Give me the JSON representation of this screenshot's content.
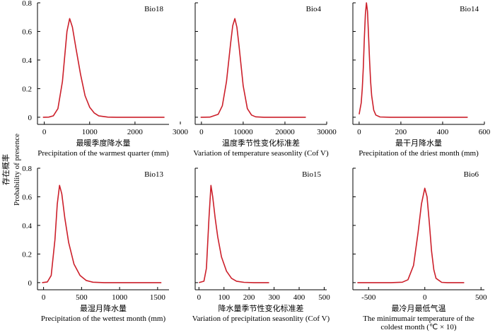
{
  "figure": {
    "ylabel_cn": "存在概率",
    "ylabel_en": "Probability of presence"
  },
  "style": {
    "line_color": "#cc1f2a",
    "axis_color": "#000000"
  },
  "chart_data": [
    {
      "type": "line",
      "panel_label": "Bio18",
      "xlabel_cn": "最暖季度降水量",
      "xlabel_en": [
        "Precipitation of the warmest quarter (mm)"
      ],
      "xlim": [
        -150,
        2750
      ],
      "ylim": [
        -0.05,
        0.8
      ],
      "xticks": [
        0,
        1000,
        2000,
        3000
      ],
      "yticks": [
        0,
        0.2,
        0.4,
        0.6,
        0.8
      ],
      "show_y_ticklabels": true,
      "x": [
        -30,
        100,
        200,
        300,
        400,
        500,
        560,
        620,
        700,
        800,
        900,
        1000,
        1100,
        1200,
        1400,
        1600,
        2000,
        2400,
        2650
      ],
      "y": [
        0,
        0.001,
        0.01,
        0.06,
        0.25,
        0.6,
        0.69,
        0.63,
        0.48,
        0.3,
        0.15,
        0.07,
        0.03,
        0.01,
        0.001,
        0,
        0,
        0,
        0
      ]
    },
    {
      "type": "line",
      "panel_label": "Bio4",
      "xlabel_cn": "温度季节性变化标准差",
      "xlabel_en": [
        "Variation of temperature seasonlity (Cof V)"
      ],
      "xlim": [
        -1500,
        30000
      ],
      "ylim": [
        -0.05,
        0.8
      ],
      "xticks": [
        0,
        10000,
        20000,
        30000
      ],
      "yticks": [
        0,
        0.2,
        0.4,
        0.6,
        0.8
      ],
      "show_y_ticklabels": false,
      "x": [
        -200,
        2000,
        4000,
        5000,
        6000,
        7000,
        7500,
        8000,
        8500,
        9000,
        10000,
        11000,
        12000,
        13000,
        15000,
        20000,
        25000
      ],
      "y": [
        0,
        0.001,
        0.02,
        0.08,
        0.25,
        0.52,
        0.64,
        0.69,
        0.63,
        0.5,
        0.22,
        0.06,
        0.015,
        0.003,
        0,
        0,
        0
      ]
    },
    {
      "type": "line",
      "panel_label": "Bio14",
      "xlabel_cn": "最干月降水量",
      "xlabel_en": [
        "Precipitation of the driest month (mm)"
      ],
      "xlim": [
        -30,
        600
      ],
      "ylim": [
        -0.05,
        0.8
      ],
      "xticks": [
        0,
        200,
        400,
        600
      ],
      "yticks": [
        0,
        0.2,
        0.4,
        0.6,
        0.8
      ],
      "show_y_ticklabels": false,
      "x": [
        0,
        5,
        10,
        15,
        20,
        25,
        30,
        35,
        40,
        45,
        50,
        55,
        60,
        70,
        80,
        100,
        150,
        300,
        520
      ],
      "y": [
        0.02,
        0.06,
        0.1,
        0.2,
        0.35,
        0.55,
        0.72,
        0.8,
        0.74,
        0.58,
        0.4,
        0.25,
        0.15,
        0.05,
        0.015,
        0.002,
        0,
        0,
        0
      ]
    },
    {
      "type": "line",
      "panel_label": "Bio13",
      "xlabel_cn": "最湿月降水量",
      "xlabel_en": [
        "Precipitation of the wettest month (mm)"
      ],
      "xlim": [
        -80,
        1650
      ],
      "ylim": [
        -0.05,
        0.8
      ],
      "xticks": [
        0,
        500,
        1000,
        1500
      ],
      "yticks": [
        0,
        0.2,
        0.4,
        0.6,
        0.8
      ],
      "show_y_ticklabels": true,
      "x": [
        -20,
        50,
        100,
        150,
        180,
        210,
        240,
        280,
        330,
        400,
        480,
        560,
        650,
        800,
        1000,
        1550
      ],
      "y": [
        0,
        0.005,
        0.05,
        0.3,
        0.55,
        0.68,
        0.62,
        0.45,
        0.28,
        0.13,
        0.05,
        0.015,
        0.003,
        0,
        0,
        0
      ]
    },
    {
      "type": "line",
      "panel_label": "Bio15",
      "xlabel_cn": "降水量季节性变化标准差",
      "xlabel_en": [
        "Variation of precipitation seasonlity (Cof V)"
      ],
      "xlim": [
        -15,
        510
      ],
      "ylim": [
        -0.05,
        0.8
      ],
      "xticks": [
        0,
        100,
        200,
        300,
        400,
        500
      ],
      "yticks": [
        0,
        0.2,
        0.4,
        0.6,
        0.8
      ],
      "show_y_ticklabels": false,
      "x": [
        0,
        20,
        30,
        40,
        48,
        55,
        65,
        75,
        90,
        110,
        130,
        150,
        180,
        220,
        280
      ],
      "y": [
        0,
        0.01,
        0.1,
        0.45,
        0.68,
        0.6,
        0.45,
        0.32,
        0.18,
        0.08,
        0.03,
        0.01,
        0.002,
        0,
        0
      ]
    },
    {
      "type": "line",
      "panel_label": "Bio6",
      "xlabel_cn": "最冷月最低气温",
      "xlabel_en": [
        "The minimumair temperature of the",
        "coldest month (℃ × 10)"
      ],
      "xlim": [
        -640,
        530
      ],
      "ylim": [
        -0.05,
        0.8
      ],
      "xticks": [
        -500,
        0,
        500
      ],
      "yticks": [
        0,
        0.2,
        0.4,
        0.6,
        0.8
      ],
      "show_y_ticklabels": false,
      "x": [
        -600,
        -300,
        -200,
        -150,
        -100,
        -60,
        -30,
        0,
        20,
        40,
        60,
        80,
        100,
        150,
        200,
        350
      ],
      "y": [
        0,
        0,
        0.003,
        0.02,
        0.12,
        0.35,
        0.55,
        0.66,
        0.6,
        0.42,
        0.22,
        0.09,
        0.03,
        0.002,
        0,
        0
      ]
    }
  ]
}
